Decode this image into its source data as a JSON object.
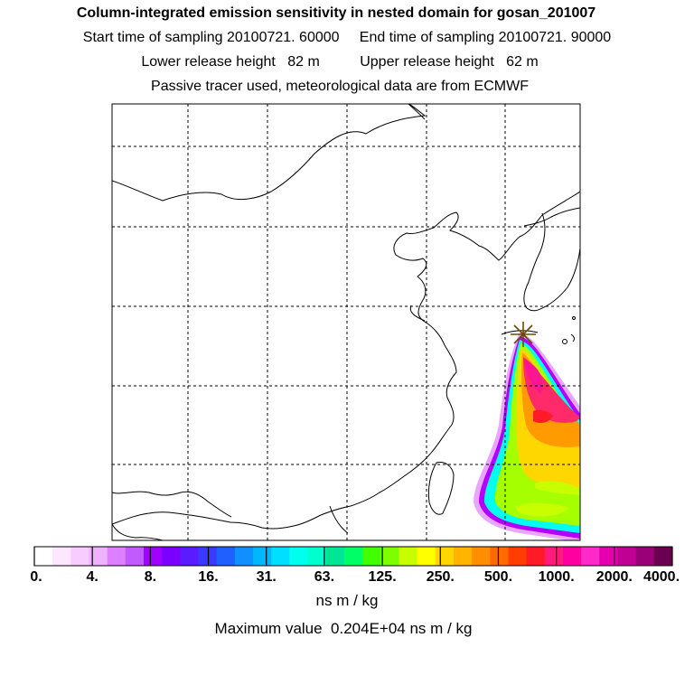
{
  "header": {
    "title": "Column-integrated emission sensitivity in nested domain for gosan_201007",
    "line1": "Start time of sampling 20100721. 60000     End time of sampling 20100721. 90000",
    "line2": "Lower release height   82 m          Upper release height   62 m",
    "line3": "Passive tracer used, meteorological data are from ECMWF"
  },
  "map": {
    "receptor_marker": "star-icon",
    "plume_colors": [
      "#ffffff",
      "#e9a6ff",
      "#b400ff",
      "#00ffee",
      "#a6ff00",
      "#ffd700",
      "#ff9a00",
      "#ff2a6a",
      "#ff1493"
    ]
  },
  "legend": {
    "colors": [
      "#ffffff",
      "#fde6ff",
      "#f8ccff",
      "#f0b2ff",
      "#dc80ff",
      "#c25bff",
      "#a000ff",
      "#7a00ff",
      "#5a1bff",
      "#3a3aff",
      "#2060ff",
      "#1090ff",
      "#00b7ff",
      "#00dfff",
      "#00ffee",
      "#00ffcf",
      "#00e693",
      "#00ff66",
      "#3fff00",
      "#7dff00",
      "#c8ff00",
      "#ffff00",
      "#ffd600",
      "#ffb400",
      "#ff8f00",
      "#ff6a00",
      "#ff3d00",
      "#ff1a2a",
      "#ff1a7d",
      "#ff00a0",
      "#ff2ac8",
      "#e400b0",
      "#bf0093",
      "#9a0077",
      "#6b0050"
    ],
    "tick_labels": [
      "0.",
      "4.",
      "8.",
      "16.",
      "31.",
      "63.",
      "125.",
      "250.",
      "500.",
      "1000.",
      "2000.",
      "4000."
    ],
    "units": "ns m / kg"
  },
  "footer": {
    "max_value_text": "Maximum value  0.204E+04 ns m / kg"
  }
}
